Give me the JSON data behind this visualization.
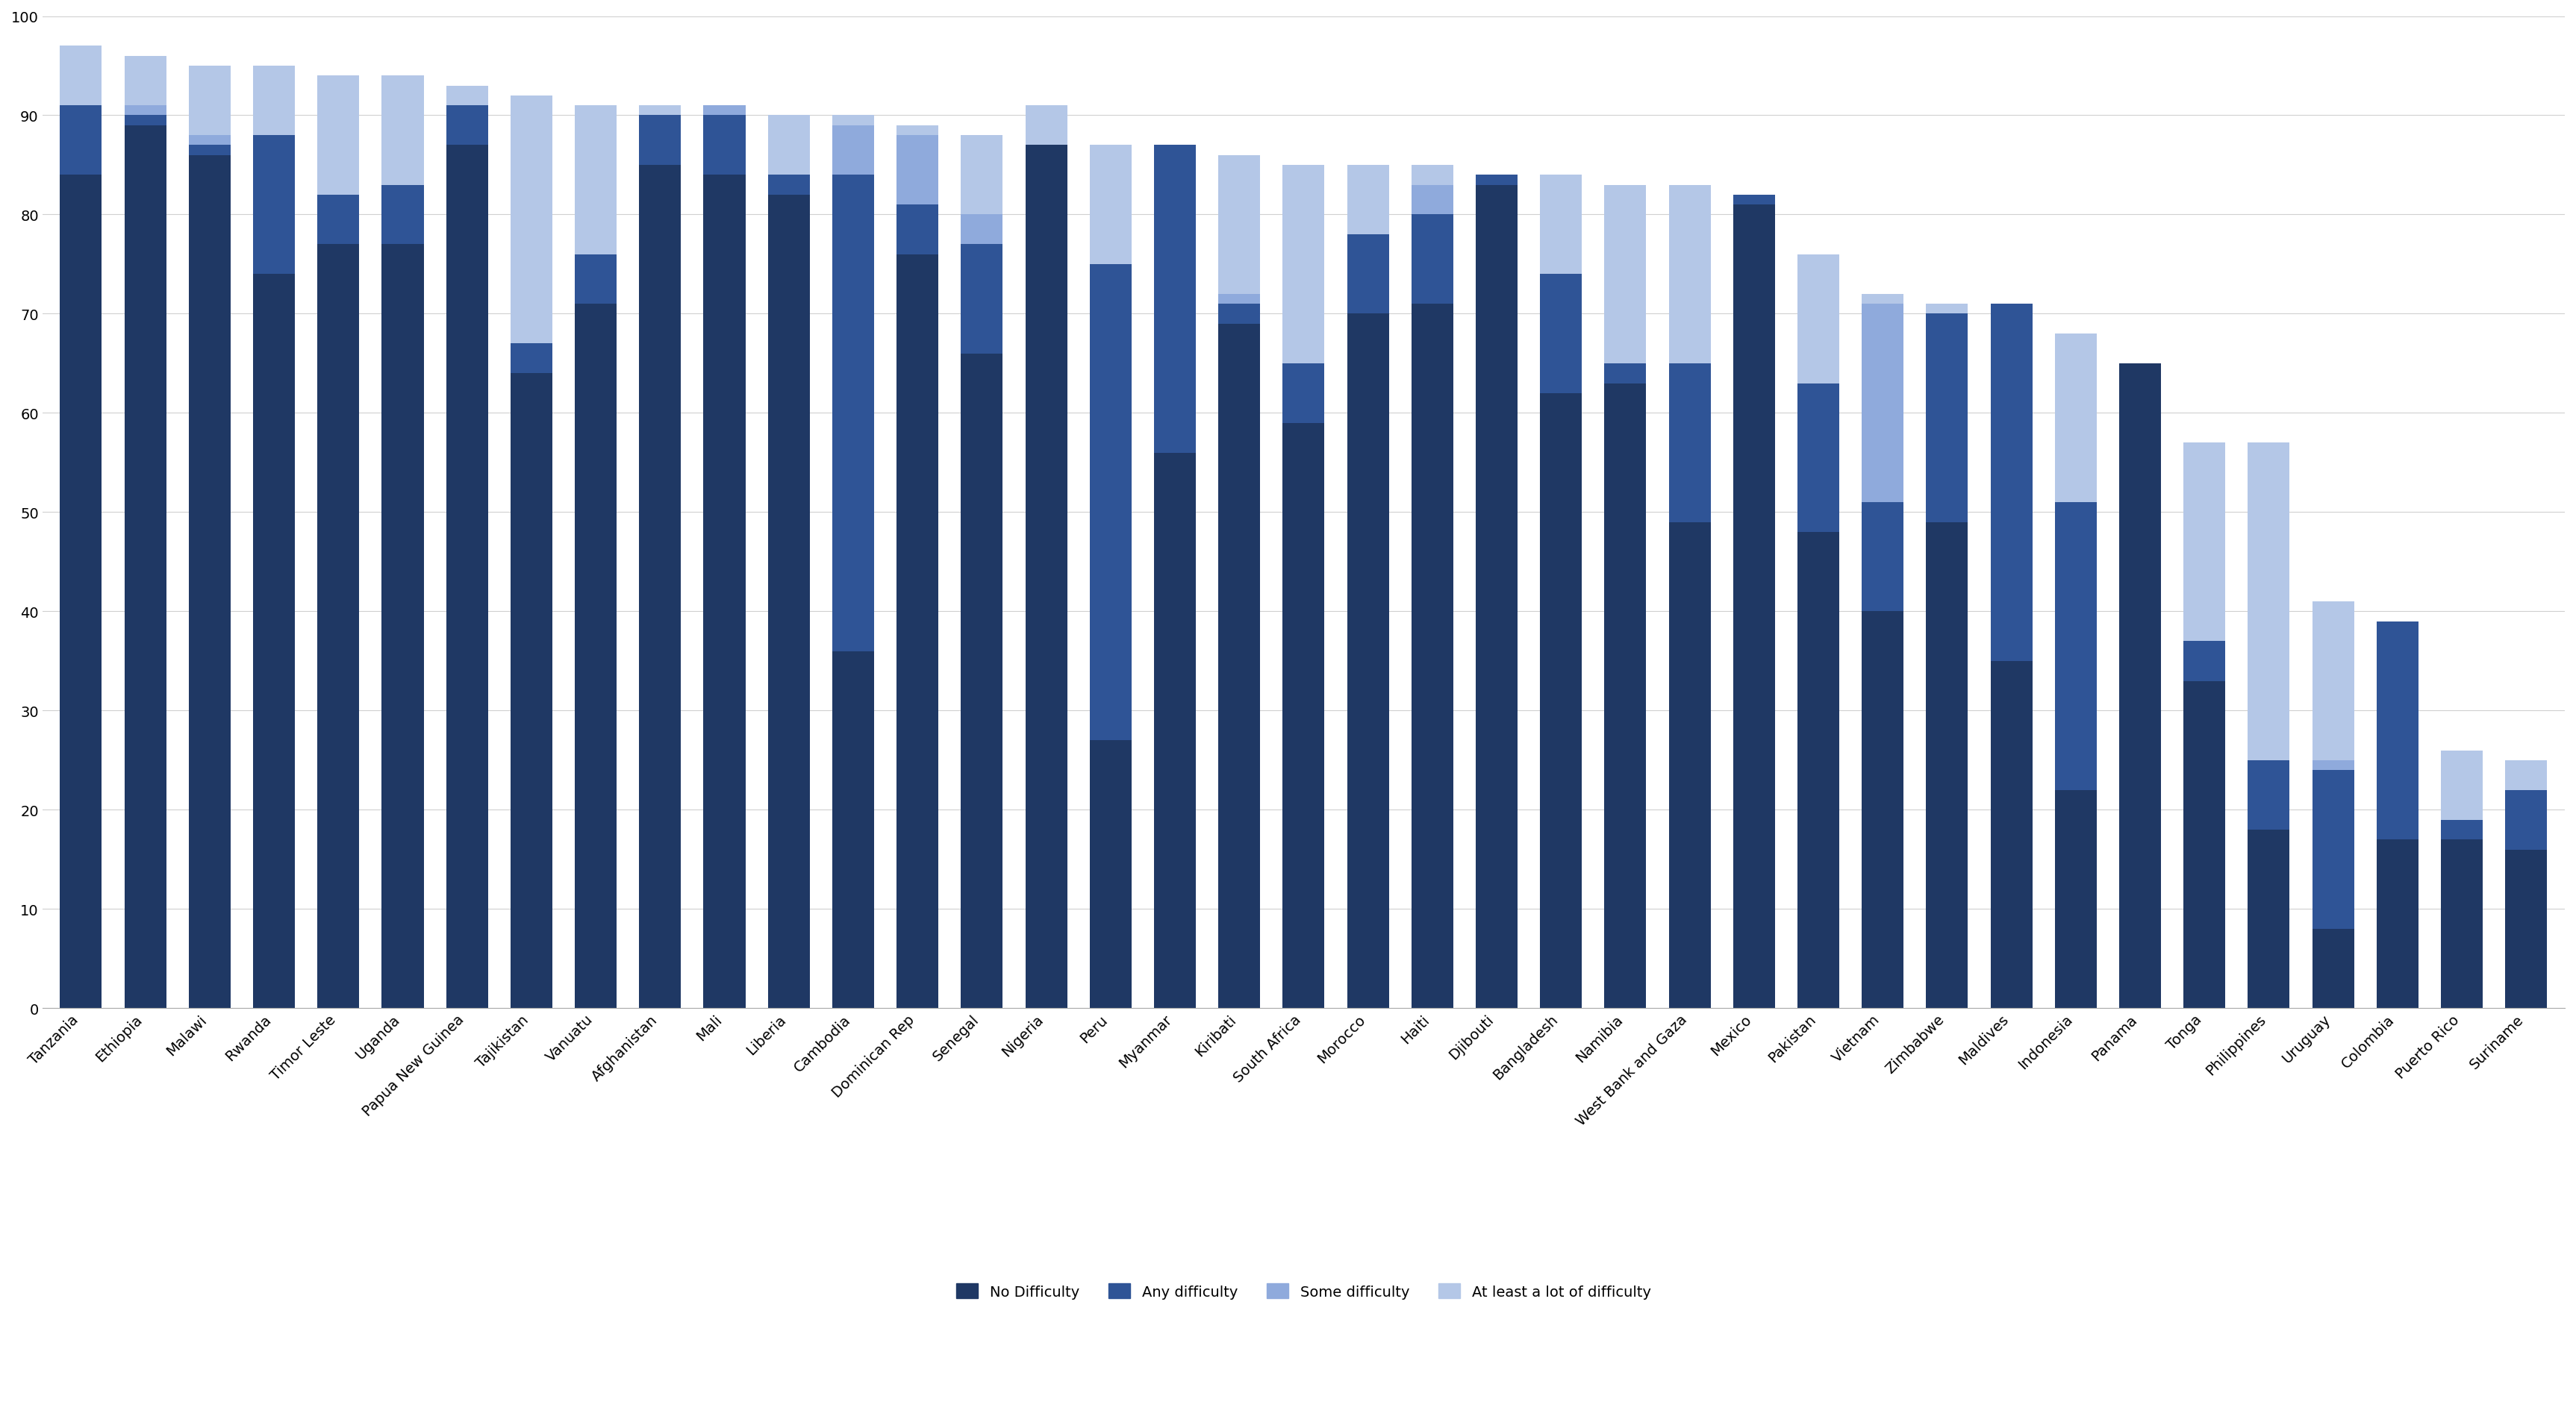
{
  "countries": [
    "Tanzania",
    "Ethiopia",
    "Malawi",
    "Rwanda",
    "Timor Leste",
    "Uganda",
    "Papua New Guinea",
    "Tajikistan",
    "Vanuatu",
    "Afghanistan",
    "Mali",
    "Liberia",
    "Cambodia",
    "Dominican Rep",
    "Senegal",
    "Nigeria",
    "Peru",
    "Myanmar",
    "Kiribati",
    "South Africa",
    "Morocco",
    "Haiti",
    "Djibouti",
    "Bangladesh",
    "Namibia",
    "West Bank and Gaza",
    "Mexico",
    "Pakistan",
    "Vietnam",
    "Zimbabwe",
    "Maldives",
    "Indonesia",
    "Panama",
    "Tonga",
    "Philippines",
    "Uruguay",
    "Colombia",
    "Puerto Rico",
    "Suriname"
  ],
  "no_difficulty": [
    84,
    89,
    86,
    74,
    77,
    77,
    87,
    64,
    71,
    85,
    84,
    82,
    36,
    76,
    66,
    87,
    27,
    56,
    69,
    59,
    70,
    71,
    83,
    62,
    63,
    49,
    81,
    48,
    40,
    49,
    35,
    22,
    65,
    33,
    18,
    8,
    17,
    17,
    16
  ],
  "any_difficulty": [
    91,
    90,
    87,
    88,
    82,
    83,
    91,
    67,
    76,
    90,
    90,
    84,
    84,
    81,
    77,
    91,
    75,
    87,
    71,
    65,
    78,
    80,
    84,
    74,
    65,
    65,
    82,
    63,
    51,
    70,
    71,
    51,
    65,
    37,
    25,
    24,
    39,
    19,
    22
  ],
  "some_difficulty": [
    91,
    91,
    88,
    88,
    82,
    83,
    91,
    67,
    76,
    90,
    91,
    84,
    89,
    88,
    80,
    91,
    75,
    87,
    72,
    65,
    78,
    83,
    84,
    74,
    65,
    65,
    82,
    63,
    71,
    70,
    71,
    51,
    65,
    37,
    25,
    25,
    39,
    19,
    22
  ],
  "total": [
    97,
    96,
    95,
    95,
    94,
    94,
    93,
    92,
    91,
    91,
    91,
    90,
    90,
    89,
    88,
    87,
    87,
    87,
    86,
    85,
    85,
    85,
    84,
    84,
    83,
    83,
    82,
    76,
    72,
    71,
    71,
    68,
    65,
    57,
    57,
    41,
    39,
    26,
    25
  ],
  "color_no_difficulty": "#1f3864",
  "color_any_difficulty": "#2f5496",
  "color_some_difficulty": "#8faadc",
  "color_least_difficulty": "#b4c7e7",
  "background_color": "#ffffff",
  "ylim": [
    0,
    100
  ],
  "yticks": [
    0,
    10,
    20,
    30,
    40,
    50,
    60,
    70,
    80,
    90,
    100
  ]
}
